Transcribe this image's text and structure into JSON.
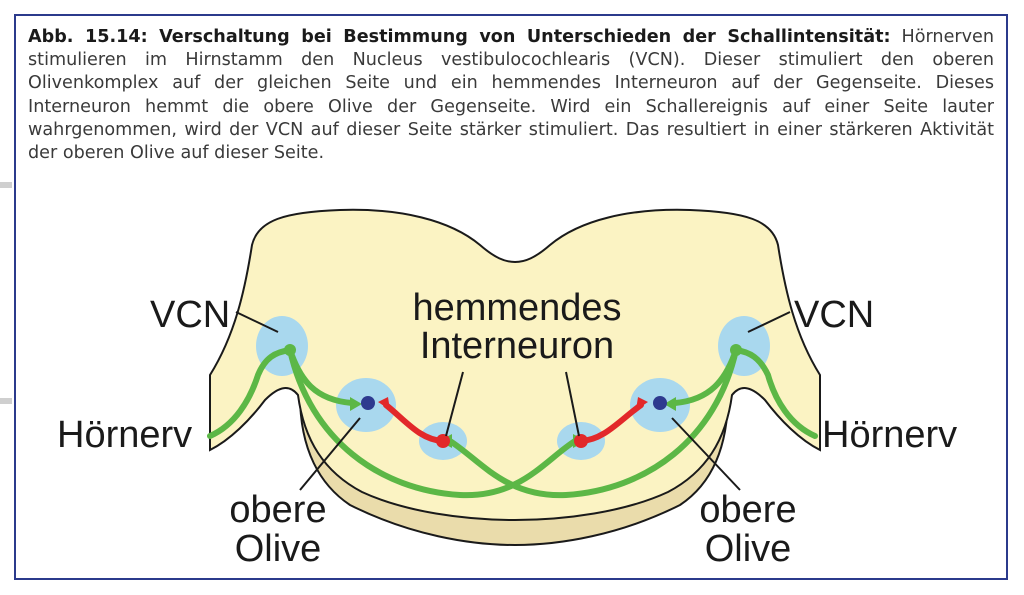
{
  "caption": {
    "title": "Abb. 15.14: Verschaltung bei Bestimmung von Unterschieden der Schallintensität:",
    "body": "Hörnerven stimulieren im Hirnstamm den Nucleus vestibulocochlearis (VCN). Dieser stimuliert den oberen Olivenkomplex auf der gleichen Seite und ein hemmendes Interneuron auf der Gegenseite. Dieses Interneuron hemmt die obere Olive der Gegenseite. Wird ein Schallereignis auf einer Seite lauter wahrgenommen, wird der VCN auf dieser Seite stärker stimuliert. Das resultiert in einer stärkeren Aktivität der oberen Olive auf dieser Seite."
  },
  "labels": {
    "vcn_left": "VCN",
    "vcn_right": "VCN",
    "interneuron_line1": "hemmendes",
    "interneuron_line2": "Interneuron",
    "hoernerv_left": "Hörnerv",
    "hoernerv_right": "Hörnerv",
    "olive_left_line1": "obere",
    "olive_left_line2": "Olive",
    "olive_right_line1": "obere",
    "olive_right_line2": "Olive"
  },
  "colors": {
    "brainstem_fill": "#fbf3c3",
    "brainstem_lower_fill": "#eadcab",
    "nucleus_fill": "#a9d8ee",
    "excitatory_path": "#5cb746",
    "inhibitory_path": "#e2282a",
    "olive_neuron": "#2e3a8f",
    "frame_border": "#2b3a8c"
  }
}
